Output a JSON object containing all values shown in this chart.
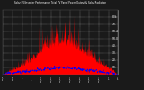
{
  "title": "Solar PV/Inverter Performance Total PV Panel Power Output & Solar Radiation",
  "bg_color": "#1a1a1a",
  "plot_bg_color": "#1a1a1a",
  "grid_color": "#ffffff",
  "bar_color": "#ff0000",
  "line_color": "#0000ff",
  "n_points": 350,
  "y_max": 90,
  "y_ticks": [
    10,
    20,
    30,
    40,
    50,
    60,
    70,
    80
  ],
  "solar_rad_scale": 8,
  "pv_max_scale": 80
}
